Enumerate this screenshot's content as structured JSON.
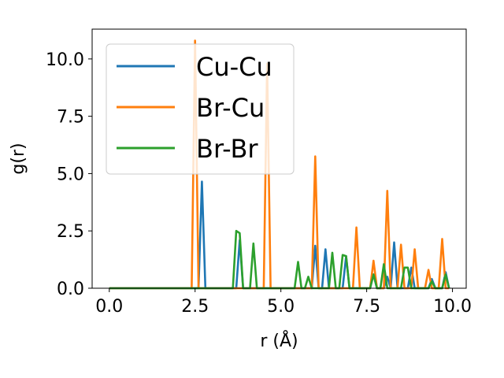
{
  "chart_data": {
    "type": "line",
    "xlabel": "r (Å)",
    "ylabel": "g(r)",
    "xlim": [
      -0.5,
      10.4
    ],
    "ylim": [
      0,
      11.3
    ],
    "xticks": [
      0.0,
      2.5,
      5.0,
      7.5,
      10.0
    ],
    "xtick_labels": [
      "0.0",
      "2.5",
      "5.0",
      "7.5",
      "10.0"
    ],
    "yticks": [
      0.0,
      2.5,
      5.0,
      7.5,
      10.0
    ],
    "ytick_labels": [
      "0.0",
      "2.5",
      "5.0",
      "7.5",
      "10.0"
    ],
    "grid": false,
    "legend_position": "upper-left",
    "series": [
      {
        "name": "Cu-Cu",
        "color": "#1f77b4",
        "x": [
          0.0,
          2.5,
          2.6,
          2.7,
          2.8,
          3.7,
          3.8,
          3.9,
          5.9,
          6.0,
          6.1,
          6.2,
          6.3,
          6.4,
          6.5,
          6.8,
          6.9,
          7.0,
          7.6,
          7.7,
          7.8,
          8.0,
          8.1,
          8.2,
          8.3,
          8.4,
          8.5,
          8.7,
          8.8,
          8.9,
          9.3,
          9.4,
          9.5,
          9.7,
          9.8,
          9.9
        ],
        "y": [
          0.0,
          0.0,
          0.0,
          4.65,
          0.0,
          0.0,
          2.1,
          0.0,
          0.0,
          1.85,
          0.0,
          0.0,
          1.7,
          0.0,
          0.0,
          0.0,
          1.4,
          0.0,
          0.0,
          0.6,
          0.0,
          0.0,
          0.5,
          0.0,
          2.0,
          0.0,
          0.0,
          0.0,
          0.9,
          0.0,
          0.0,
          0.4,
          0.0,
          0.0,
          0.7,
          0.0
        ]
      },
      {
        "name": "Br-Cu",
        "color": "#ff7f0e",
        "x": [
          0.0,
          2.4,
          2.5,
          2.6,
          4.5,
          4.6,
          4.7,
          5.9,
          6.0,
          6.1,
          7.1,
          7.2,
          7.3,
          7.6,
          7.7,
          7.8,
          8.0,
          8.1,
          8.2,
          8.3,
          8.4,
          8.5,
          8.6,
          8.8,
          8.9,
          9.0,
          9.1,
          9.2,
          9.3,
          9.4,
          9.6,
          9.7,
          9.8,
          9.9
        ],
        "y": [
          0.0,
          0.0,
          10.8,
          0.0,
          0.0,
          9.8,
          0.0,
          0.0,
          5.75,
          0.0,
          0.0,
          2.65,
          0.0,
          0.0,
          1.2,
          0.0,
          0.0,
          4.25,
          0.0,
          0.0,
          0.0,
          1.9,
          0.0,
          0.0,
          1.7,
          0.0,
          0.0,
          0.0,
          0.8,
          0.0,
          0.0,
          2.15,
          0.0,
          0.0
        ]
      },
      {
        "name": "Br-Br",
        "color": "#2ca02c",
        "x": [
          0.0,
          3.6,
          3.7,
          3.8,
          3.9,
          4.1,
          4.2,
          4.3,
          5.4,
          5.5,
          5.6,
          5.7,
          5.8,
          5.9,
          6.4,
          6.5,
          6.6,
          6.7,
          6.8,
          6.9,
          7.0,
          7.1,
          7.6,
          7.7,
          7.8,
          7.9,
          8.0,
          8.1,
          8.2,
          8.5,
          8.6,
          8.7,
          8.8,
          8.9,
          9.3,
          9.4,
          9.5,
          9.6,
          9.7,
          9.8,
          9.9
        ],
        "y": [
          0.0,
          0.0,
          2.5,
          2.4,
          0.0,
          0.0,
          1.95,
          0.0,
          0.0,
          1.15,
          0.0,
          0.0,
          0.5,
          0.0,
          0.0,
          1.55,
          0.0,
          0.0,
          1.45,
          1.4,
          0.0,
          0.0,
          0.0,
          0.6,
          0.0,
          0.0,
          1.05,
          0.0,
          0.0,
          0.0,
          0.9,
          0.9,
          0.0,
          0.0,
          0.0,
          0.3,
          0.0,
          0.0,
          0.0,
          0.6,
          0.0
        ]
      }
    ]
  }
}
